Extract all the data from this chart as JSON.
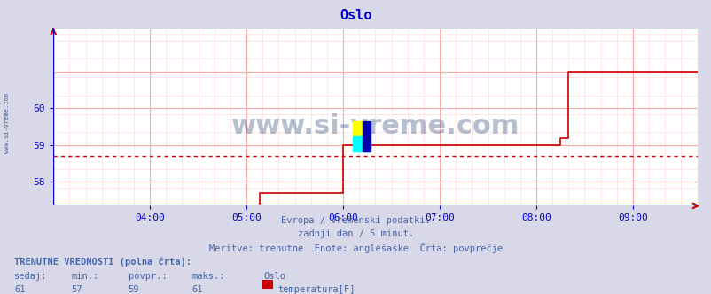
{
  "title": "Oslo",
  "title_color": "#0000cc",
  "bg_color": "#d8d8e8",
  "plot_bg_color": "#ffffff",
  "grid_color_major": "#ffaaaa",
  "grid_color_minor": "#ffdddd",
  "line_color": "#cc0000",
  "avg_line_color": "#cc0000",
  "avg_value": 58.72,
  "xmin": 3.0,
  "xmax": 9.67,
  "ymin": 57.35,
  "ymax": 62.15,
  "yticks": [
    58,
    59,
    60
  ],
  "xtick_positions": [
    4,
    5,
    6,
    7,
    8,
    9
  ],
  "xtick_labels": [
    "04:00",
    "05:00",
    "06:00",
    "07:00",
    "08:00",
    "09:00"
  ],
  "axis_color": "#0000cc",
  "tick_color": "#0000cc",
  "watermark": "www.si-vreme.com",
  "watermark_color": "#1a3a6e",
  "side_text": "www.si-vreme.com",
  "subtitle1": "Evropa / vremenski podatki.",
  "subtitle2": "zadnji dan / 5 minut.",
  "subtitle3": "Meritve: trenutne  Enote: anglešaške  Črta: povprečje",
  "subtitle_color": "#4466aa",
  "bottom_bold_label": "TRENUTNE VREDNOSTI (polna črta):",
  "bottom_labels": [
    "sedaj:",
    "min.:",
    "povpr.:",
    "maks.:",
    "Oslo"
  ],
  "bottom_values": [
    "61",
    "57",
    "59",
    "61",
    "temperatura[F]"
  ],
  "bottom_color": "#4466aa",
  "legend_color": "#cc0000",
  "data_x": [
    3.0,
    3.5,
    4.0,
    4.5,
    4.917,
    5.0,
    5.083,
    5.117,
    5.133,
    5.583,
    5.6,
    5.617,
    5.633,
    5.65,
    5.667,
    5.683,
    5.7,
    5.717,
    5.733,
    5.75,
    5.767,
    5.783,
    5.8,
    5.817,
    5.833,
    5.85,
    5.867,
    5.883,
    5.9,
    5.917,
    5.933,
    5.95,
    5.967,
    5.983,
    6.0,
    6.5,
    7.0,
    7.5,
    8.0,
    8.083,
    8.1,
    8.117,
    8.133,
    8.15,
    8.167,
    8.183,
    8.2,
    8.217,
    8.233,
    8.25,
    8.267,
    8.283,
    8.3,
    8.317,
    8.333,
    8.5,
    9.0,
    9.5,
    9.67
  ],
  "data_y": [
    57.0,
    57.0,
    57.0,
    57.0,
    57.0,
    57.0,
    57.0,
    57.0,
    57.7,
    57.7,
    57.7,
    57.7,
    57.7,
    57.7,
    57.7,
    57.7,
    57.7,
    57.7,
    57.7,
    57.7,
    57.7,
    57.7,
    57.7,
    57.7,
    57.7,
    57.7,
    57.7,
    57.7,
    57.7,
    57.7,
    57.7,
    57.7,
    57.7,
    57.7,
    59.0,
    59.0,
    59.0,
    59.0,
    59.0,
    59.0,
    59.0,
    59.0,
    59.0,
    59.0,
    59.0,
    59.0,
    59.0,
    59.0,
    59.0,
    59.2,
    59.2,
    59.2,
    59.2,
    59.2,
    61.0,
    61.0,
    61.0,
    61.0,
    61.0
  ]
}
